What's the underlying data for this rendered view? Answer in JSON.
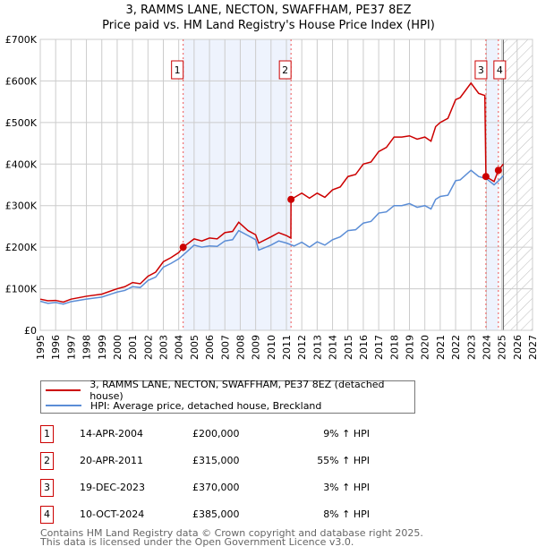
{
  "header": {
    "title": "3, RAMMS LANE, NECTON, SWAFFHAM, PE37 8EZ",
    "subtitle": "Price paid vs. HM Land Registry's House Price Index (HPI)"
  },
  "chart_data": {
    "type": "line",
    "title": "3, RAMMS LANE, NECTON, SWAFFHAM, PE37 8EZ",
    "subtitle": "Price paid vs. HM Land Registry's House Price Index (HPI)",
    "xlim": [
      1995,
      2027
    ],
    "ylim": [
      0,
      700000
    ],
    "x_ticks": [
      "1995",
      "1996",
      "1997",
      "1998",
      "1999",
      "2000",
      "2001",
      "2002",
      "2003",
      "2004",
      "2005",
      "2006",
      "2007",
      "2008",
      "2009",
      "2010",
      "2011",
      "2012",
      "2013",
      "2014",
      "2015",
      "2016",
      "2017",
      "2018",
      "2019",
      "2020",
      "2021",
      "2022",
      "2023",
      "2024",
      "2025",
      "2026",
      "2027"
    ],
    "y_ticks": [
      {
        "v": 0,
        "label": "£0"
      },
      {
        "v": 100000,
        "label": "£100K"
      },
      {
        "v": 200000,
        "label": "£200K"
      },
      {
        "v": 300000,
        "label": "£300K"
      },
      {
        "v": 400000,
        "label": "£400K"
      },
      {
        "v": 500000,
        "label": "£500K"
      },
      {
        "v": 600000,
        "label": "£600K"
      },
      {
        "v": 700000,
        "label": "£700K"
      }
    ],
    "grid": true,
    "forecast_start": 2025.1,
    "shaded_periods": [
      [
        2004.29,
        2011.3
      ],
      [
        2023.97,
        2024.78
      ]
    ],
    "series": [
      {
        "name": "3, RAMMS LANE, NECTON, SWAFFHAM, PE37 8EZ (detached house)",
        "color": "#cc0000",
        "x": [
          1995,
          1995.5,
          1996,
          1996.5,
          1997,
          1998,
          1999,
          2000,
          2000.5,
          2001,
          2001.5,
          2002,
          2002.5,
          2003,
          2003.5,
          2004,
          2004.29,
          2005,
          2005.5,
          2006,
          2006.5,
          2007,
          2007.5,
          2007.9,
          2008.5,
          2009,
          2009.2,
          2010,
          2010.5,
          2011,
          2011.29,
          2011.3,
          2012,
          2012.5,
          2013,
          2013.5,
          2014,
          2014.5,
          2015,
          2015.5,
          2016,
          2016.5,
          2017,
          2017.5,
          2018,
          2018.5,
          2019,
          2019.5,
          2020,
          2020.4,
          2020.7,
          2021,
          2021.5,
          2022,
          2022.3,
          2023,
          2023.5,
          2023.9,
          2023.97,
          2024.5,
          2024.78,
          2025.1
        ],
        "y": [
          75000,
          71000,
          72000,
          68000,
          75000,
          82000,
          87000,
          100000,
          105000,
          115000,
          112000,
          130000,
          140000,
          165000,
          175000,
          187000,
          200000,
          220000,
          215000,
          222000,
          220000,
          235000,
          238000,
          260000,
          240000,
          230000,
          210000,
          225000,
          235000,
          228000,
          222000,
          315000,
          330000,
          318000,
          330000,
          320000,
          338000,
          345000,
          370000,
          375000,
          400000,
          405000,
          430000,
          440000,
          465000,
          465000,
          468000,
          460000,
          465000,
          455000,
          490000,
          500000,
          510000,
          555000,
          560000,
          595000,
          570000,
          565000,
          370000,
          358000,
          385000,
          400000
        ]
      },
      {
        "name": "HPI: Average price, detached house, Breckland",
        "color": "#5b8dd6",
        "x": [
          1995,
          1995.5,
          1996,
          1996.5,
          1997,
          1998,
          1999,
          2000,
          2000.5,
          2001,
          2001.5,
          2002,
          2002.5,
          2003,
          2003.5,
          2004,
          2004.5,
          2005,
          2005.5,
          2006,
          2006.5,
          2007,
          2007.5,
          2007.9,
          2008.5,
          2009,
          2009.2,
          2010,
          2010.5,
          2011,
          2011.5,
          2012,
          2012.5,
          2013,
          2013.5,
          2014,
          2014.5,
          2015,
          2015.5,
          2016,
          2016.5,
          2017,
          2017.5,
          2018,
          2018.5,
          2019,
          2019.5,
          2020,
          2020.4,
          2020.7,
          2021,
          2021.5,
          2022,
          2022.3,
          2023,
          2023.5,
          2024,
          2024.5,
          2024.8,
          2025.1
        ],
        "y": [
          70000,
          65000,
          67000,
          63000,
          69000,
          75000,
          80000,
          92000,
          96000,
          105000,
          103000,
          120000,
          128000,
          152000,
          161000,
          172000,
          188000,
          205000,
          200000,
          203000,
          202000,
          215000,
          218000,
          240000,
          228000,
          218000,
          193000,
          205000,
          215000,
          210000,
          203000,
          212000,
          200000,
          213000,
          205000,
          218000,
          225000,
          240000,
          242000,
          258000,
          262000,
          282000,
          285000,
          300000,
          300000,
          305000,
          296000,
          300000,
          292000,
          315000,
          322000,
          325000,
          360000,
          362000,
          385000,
          370000,
          365000,
          350000,
          360000,
          372000
        ]
      }
    ],
    "sales": [
      {
        "n": "1",
        "x": 2004.29,
        "y": 200000
      },
      {
        "n": "2",
        "x": 2011.3,
        "y": 315000
      },
      {
        "n": "3",
        "x": 2023.97,
        "y": 370000
      },
      {
        "n": "4",
        "x": 2024.78,
        "y": 385000
      }
    ]
  },
  "legend": {
    "property": "3, RAMMS LANE, NECTON, SWAFFHAM, PE37 8EZ (detached house)",
    "hpi": "HPI: Average price, detached house, Breckland"
  },
  "transactions": [
    {
      "n": "1",
      "date": "14-APR-2004",
      "price": "£200,000",
      "hpi": "9% ↑ HPI"
    },
    {
      "n": "2",
      "date": "20-APR-2011",
      "price": "£315,000",
      "hpi": "55% ↑ HPI"
    },
    {
      "n": "3",
      "date": "19-DEC-2023",
      "price": "£370,000",
      "hpi": "3% ↑ HPI"
    },
    {
      "n": "4",
      "date": "10-OCT-2024",
      "price": "£385,000",
      "hpi": "8% ↑ HPI"
    }
  ],
  "footer": {
    "line1": "Contains HM Land Registry data © Crown copyright and database right 2025.",
    "line2": "This data is licensed under the Open Government Licence v3.0."
  }
}
